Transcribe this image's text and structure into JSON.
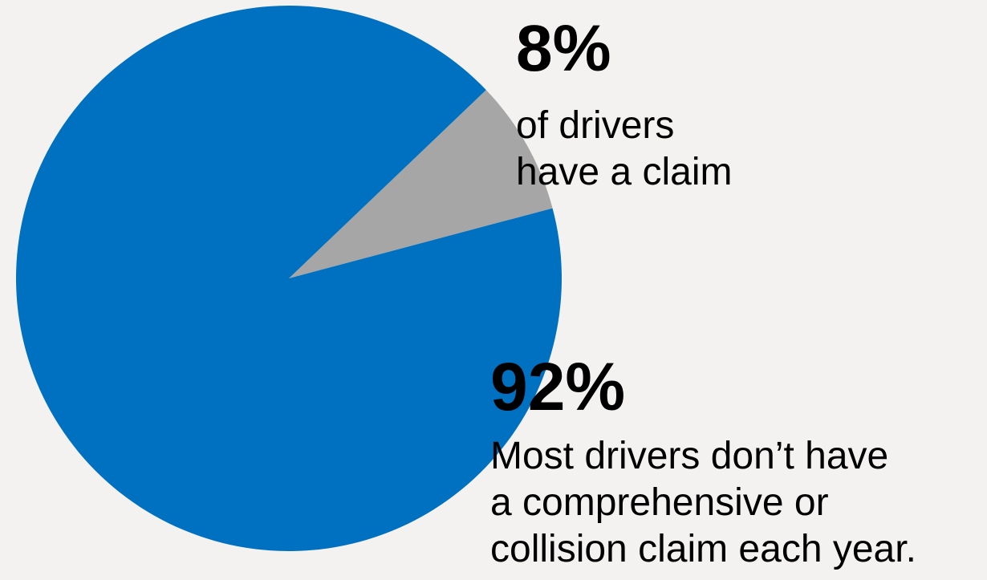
{
  "chart_data": {
    "type": "pie",
    "slices": [
      {
        "label": "have a claim",
        "value": 8,
        "color": "#a6a6a6"
      },
      {
        "label": "don't have a claim",
        "value": 92,
        "color": "#0070c0"
      }
    ],
    "annotations": {
      "small": {
        "percent": "8%",
        "lines": [
          "of drivers",
          "have a claim"
        ]
      },
      "large": {
        "percent": "92%",
        "lines": [
          "Most drivers don’t have",
          "a comprehensive or",
          "collision claim each year."
        ]
      }
    }
  }
}
